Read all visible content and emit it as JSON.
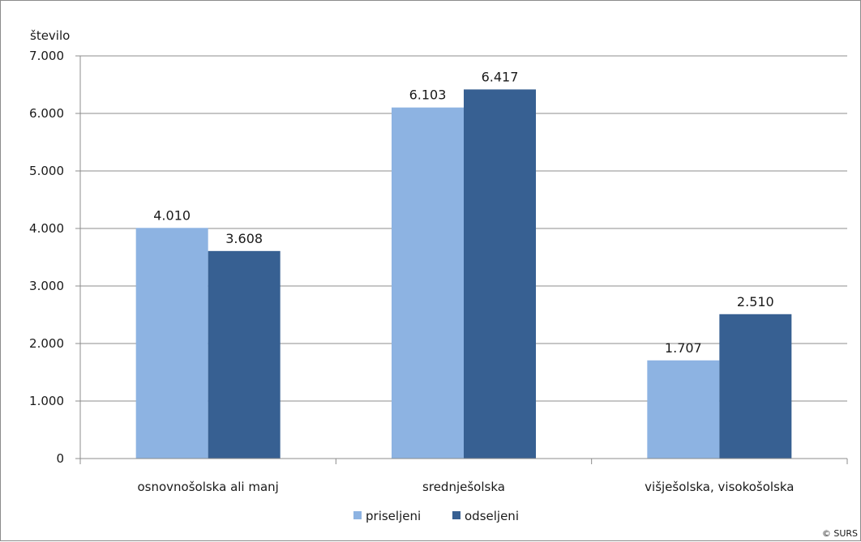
{
  "chart_data": {
    "type": "bar",
    "ylabel": "število",
    "categories": [
      "osnovnošolska ali manj",
      "srednješolska",
      "višješolska, visokošolska"
    ],
    "series": [
      {
        "name": "priseljeni",
        "values": [
          4010,
          6103,
          1707
        ],
        "labels": [
          "4.010",
          "6.103",
          "1.707"
        ],
        "color": "#8db3e2"
      },
      {
        "name": "odseljeni",
        "values": [
          3608,
          6417,
          2510
        ],
        "labels": [
          "3.608",
          "6.417",
          "2.510"
        ],
        "color": "#376092"
      }
    ],
    "ylim": [
      0,
      7000
    ],
    "yticks": [
      0,
      1000,
      2000,
      3000,
      4000,
      5000,
      6000,
      7000
    ],
    "ytick_labels": [
      "0",
      "1.000",
      "2.000",
      "3.000",
      "4.000",
      "5.000",
      "6.000",
      "7.000"
    ],
    "grid": true,
    "legend_position": "bottom"
  },
  "credit": "© SURS"
}
